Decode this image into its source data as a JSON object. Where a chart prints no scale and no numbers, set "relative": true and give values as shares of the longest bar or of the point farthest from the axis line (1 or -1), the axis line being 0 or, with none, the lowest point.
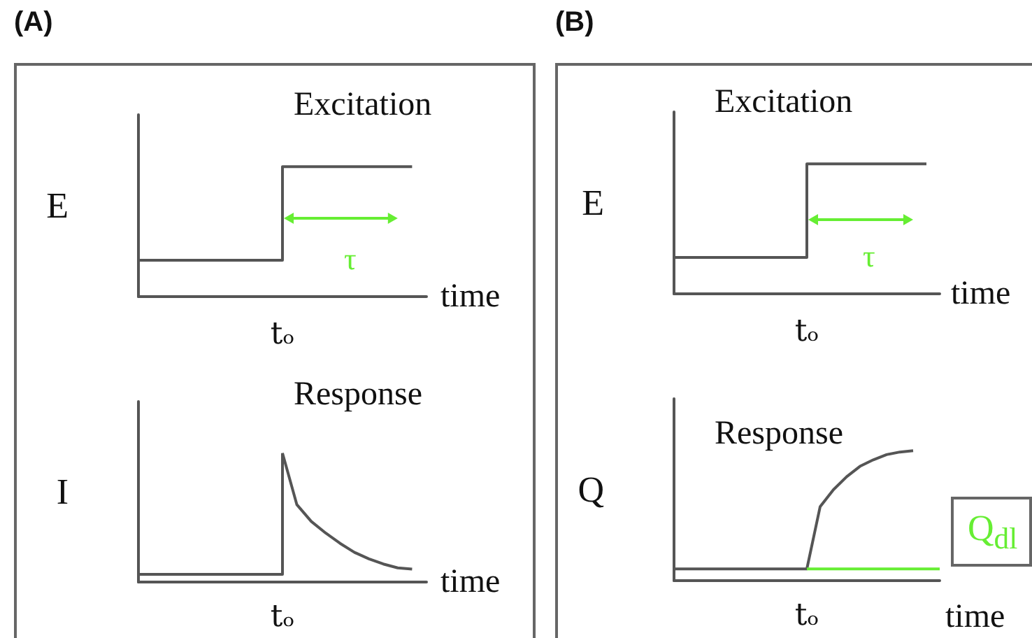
{
  "chart_data": [
    {
      "type": "line",
      "relative": true,
      "title": "Excitation",
      "annotations": [
        "(A)",
        "τ",
        "tₒ"
      ],
      "xlabel": "time",
      "ylabel": "E",
      "marker": "none",
      "categories": [
        null,
        null,
        null,
        null,
        null,
        null,
        null,
        null,
        null,
        null,
        null,
        null,
        null,
        null,
        null,
        null,
        null,
        null,
        null,
        null,
        null
      ],
      "series": [
        {
          "type": "step",
          "color": "#555555",
          "values": [
            0.28,
            0.28,
            0.28,
            0.28,
            0.28,
            0.28,
            0.28,
            0.28,
            0.28,
            0.28,
            1,
            1,
            1,
            1,
            1,
            1,
            1,
            1,
            1,
            1,
            null
          ]
        }
      ]
    },
    {
      "type": "line",
      "relative": true,
      "title": "Response",
      "annotations": [
        "tₒ"
      ],
      "xlabel": "time",
      "ylabel": "I",
      "marker": "none",
      "categories": [
        null,
        null,
        null,
        null,
        null,
        null,
        null,
        null,
        null,
        null,
        null,
        null,
        null,
        null,
        null,
        null,
        null,
        null,
        null,
        null,
        null
      ],
      "series": [
        {
          "type": "step",
          "color": "#555555",
          "values": [
            0.06,
            0.06,
            0.06,
            0.06,
            0.06,
            0.06,
            0.06,
            0.06,
            0.06,
            0.06,
            1,
            null,
            null,
            null,
            null,
            null,
            null,
            null,
            null,
            null,
            null
          ]
        },
        {
          "type": "line",
          "color": "#555555",
          "values": [
            null,
            null,
            null,
            null,
            null,
            null,
            null,
            null,
            null,
            null,
            1,
            0.6,
            0.47,
            0.38,
            0.3,
            0.23,
            0.18,
            0.14,
            0.11,
            0.1,
            null
          ]
        }
      ]
    },
    {
      "type": "line",
      "relative": true,
      "title": "Excitation",
      "annotations": [
        "(B)",
        "τ",
        "tₒ"
      ],
      "xlabel": "time",
      "ylabel": "E",
      "marker": "none",
      "categories": [
        null,
        null,
        null,
        null,
        null,
        null,
        null,
        null,
        null,
        null,
        null,
        null,
        null,
        null,
        null,
        null,
        null,
        null,
        null,
        null,
        null
      ],
      "series": [
        {
          "type": "step",
          "color": "#555555",
          "values": [
            0.28,
            0.28,
            0.28,
            0.28,
            0.28,
            0.28,
            0.28,
            0.28,
            0.28,
            0.28,
            1,
            1,
            1,
            1,
            1,
            1,
            1,
            1,
            1,
            1,
            null
          ]
        }
      ]
    },
    {
      "type": "line",
      "relative": true,
      "title": "Response",
      "annotations": [
        "tₒ"
      ],
      "xlabel": "time",
      "ylabel": "Q",
      "marker": "none",
      "categories": [
        null,
        null,
        null,
        null,
        null,
        null,
        null,
        null,
        null,
        null,
        null,
        null,
        null,
        null,
        null,
        null,
        null,
        null,
        null,
        null,
        null
      ],
      "series": [
        {
          "type": "line",
          "color": "#555555",
          "values": [
            0.09,
            0.09,
            0.09,
            0.09,
            0.09,
            0.09,
            0.09,
            0.09,
            0.09,
            0.09,
            0.09,
            0.57,
            0.7,
            0.8,
            0.88,
            0.93,
            0.97,
            0.99,
            1,
            null,
            null
          ]
        },
        {
          "type": "line",
          "name": "Q$_{dl}$",
          "color": "#66ee33",
          "values": [
            null,
            null,
            null,
            null,
            null,
            null,
            null,
            null,
            null,
            null,
            0.09,
            0.09,
            0.09,
            0.09,
            0.09,
            0.09,
            0.09,
            0.09,
            0.09,
            0.09,
            0.09
          ]
        }
      ]
    }
  ]
}
